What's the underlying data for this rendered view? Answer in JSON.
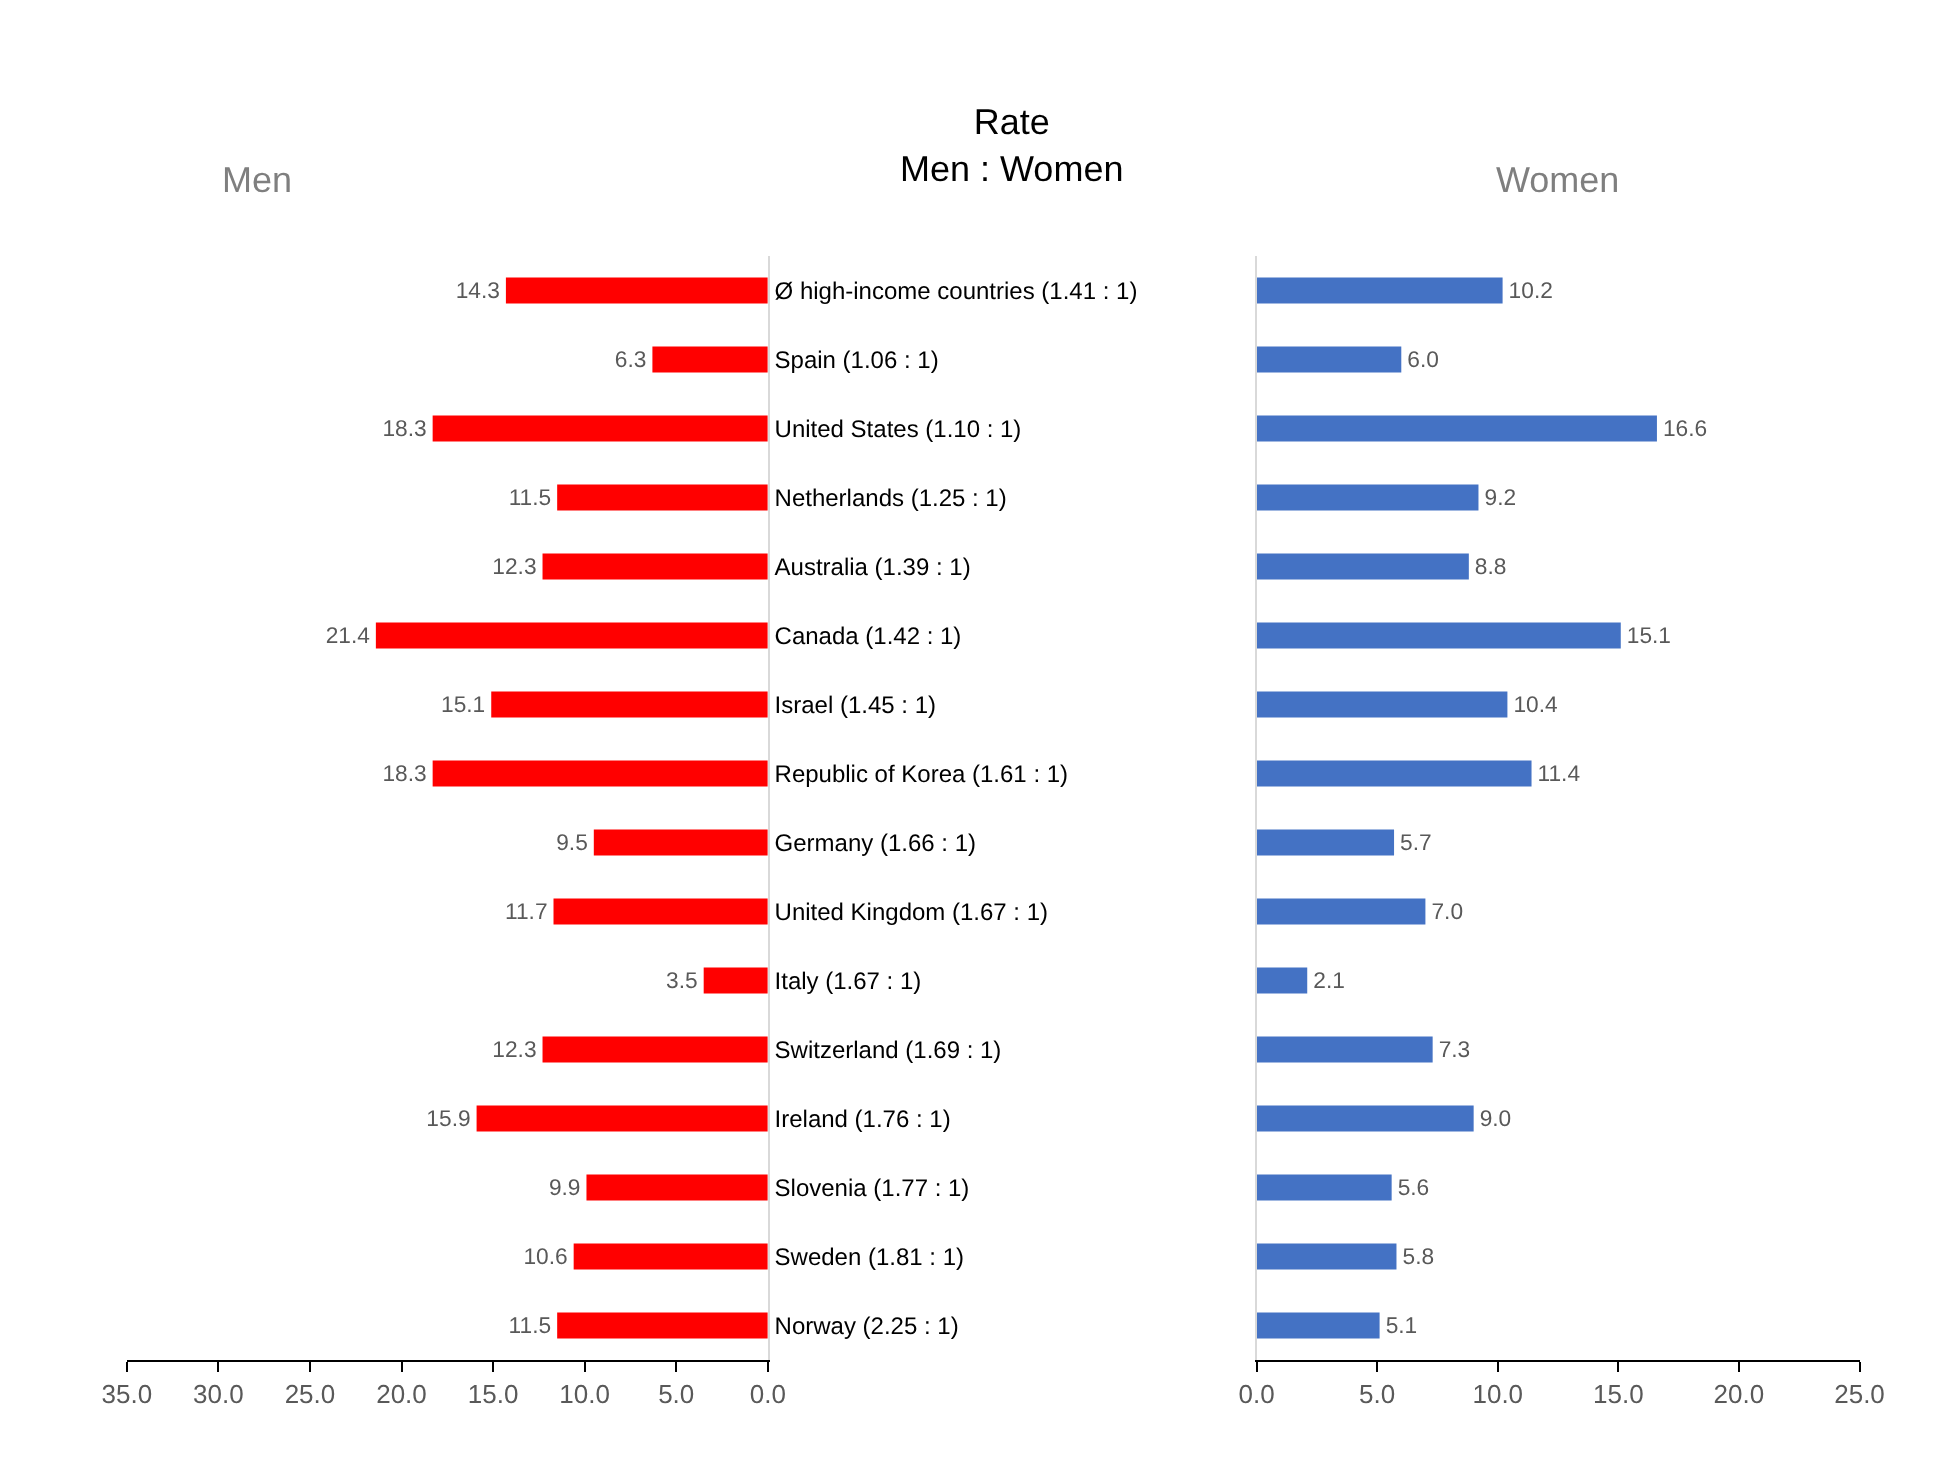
{
  "chart_data": [
    {
      "type": "bar",
      "orientation": "horizontal",
      "title": "Men",
      "ylabel": "Rate\nMen : Women",
      "categories": [
        "Ø high-income countries (1.41 : 1)",
        "Spain (1.06 : 1)",
        "United States (1.10 : 1)",
        "Netherlands (1.25 : 1)",
        "Australia (1.39 : 1)",
        "Canada (1.42 : 1)",
        "Israel (1.45 : 1)",
        "Republic of Korea (1.61 : 1)",
        "Germany (1.66 : 1)",
        "United Kingdom (1.67 : 1)",
        "Italy (1.67 : 1)",
        "Switzerland (1.69 : 1)",
        "Ireland (1.76 : 1)",
        "Slovenia (1.77 : 1)",
        "Sweden (1.81 : 1)",
        "Norway (2.25 : 1)"
      ],
      "series": [
        {
          "color": "#ff0000",
          "values": [
            14.3,
            6.3,
            18.3,
            11.5,
            12.3,
            21.4,
            15.1,
            18.3,
            9.5,
            11.7,
            3.5,
            12.3,
            15.9,
            9.9,
            10.6,
            11.5
          ],
          "value_labels": [
            "14.3",
            "6.3",
            "18.3",
            "11.5",
            "12.3",
            "21.4",
            "15.1",
            "18.3",
            "9.5",
            "11.7",
            "3.5",
            "12.3",
            "15.9",
            "9.9",
            "10.6",
            "11.5"
          ]
        }
      ],
      "xlim": [
        35,
        0
      ],
      "xticks": [
        {
          "value": 35,
          "label": "35.0"
        },
        {
          "value": 30,
          "label": "30.0"
        },
        {
          "value": 25,
          "label": "25.0"
        },
        {
          "value": 20,
          "label": "20.0"
        },
        {
          "value": 15,
          "label": "15.0"
        },
        {
          "value": 10,
          "label": "10.0"
        },
        {
          "value": 5,
          "label": "5.0"
        },
        {
          "value": 0,
          "label": "0.0"
        }
      ]
    },
    {
      "type": "bar",
      "orientation": "horizontal",
      "title": "Women",
      "tick_labels": "x",
      "categories": [
        null,
        null,
        null,
        null,
        null,
        null,
        null,
        null,
        null,
        null,
        null,
        null,
        null,
        null,
        null,
        null
      ],
      "series": [
        {
          "color": "#4472c4",
          "values": [
            10.2,
            6.0,
            16.6,
            9.2,
            8.8,
            15.1,
            10.4,
            11.4,
            5.7,
            7.0,
            2.1,
            7.3,
            9.0,
            5.6,
            5.8,
            5.1
          ],
          "value_labels": [
            "10.2",
            "6.0",
            "16.6",
            "9.2",
            "8.8",
            "15.1",
            "10.4",
            "11.4",
            "5.7",
            "7.0",
            "2.1",
            "7.3",
            "9.0",
            "5.6",
            "5.8",
            "5.1"
          ]
        }
      ],
      "xlim": [
        0,
        25
      ],
      "xticks": [
        {
          "value": 0,
          "label": "0.0"
        },
        {
          "value": 5,
          "label": "5.0"
        },
        {
          "value": 10,
          "label": "10.0"
        },
        {
          "value": 15,
          "label": "15.0"
        },
        {
          "value": 20,
          "label": "20.0"
        },
        {
          "value": 25,
          "label": "25.0"
        }
      ]
    }
  ]
}
